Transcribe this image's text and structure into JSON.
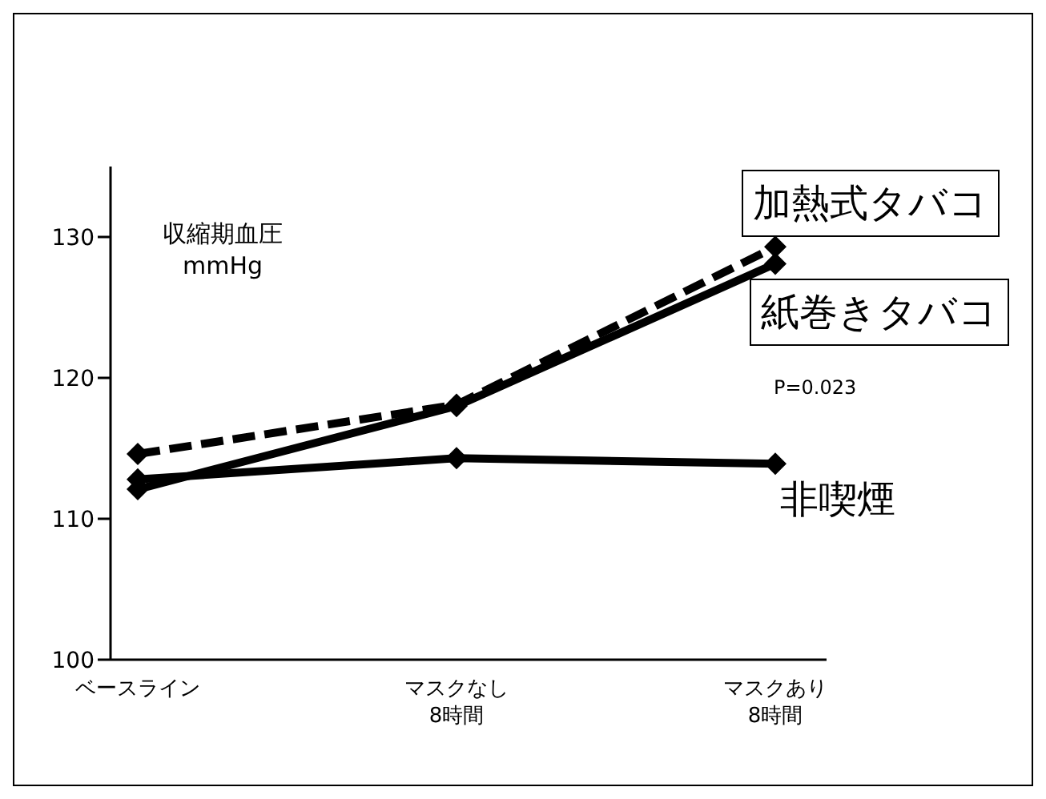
{
  "chart_data": {
    "type": "line",
    "ylabel": "収縮期血圧\nmmHg",
    "categories": [
      "ベースライン",
      "マスクなし\n8時間",
      "マスクあり\n8時間"
    ],
    "series": [
      {
        "name": "加熱式タバコ",
        "color": "#000000",
        "values": [
          114.6,
          118.1,
          129.3
        ],
        "line_style": "dashed"
      },
      {
        "name": "紙巻きタバコ",
        "color": "#000000",
        "values": [
          112.1,
          118,
          128.1
        ],
        "line_style": "solid"
      },
      {
        "name": "非喫煙",
        "color": "#000000",
        "values": [
          112.8,
          114.3,
          113.9
        ],
        "line_style": "solid"
      }
    ],
    "ylim": [
      100,
      135
    ],
    "yticks": [
      100,
      110,
      120,
      130
    ],
    "grid": false,
    "legend": false,
    "marker": "diamond",
    "annotations": [
      "P=0.023"
    ]
  }
}
